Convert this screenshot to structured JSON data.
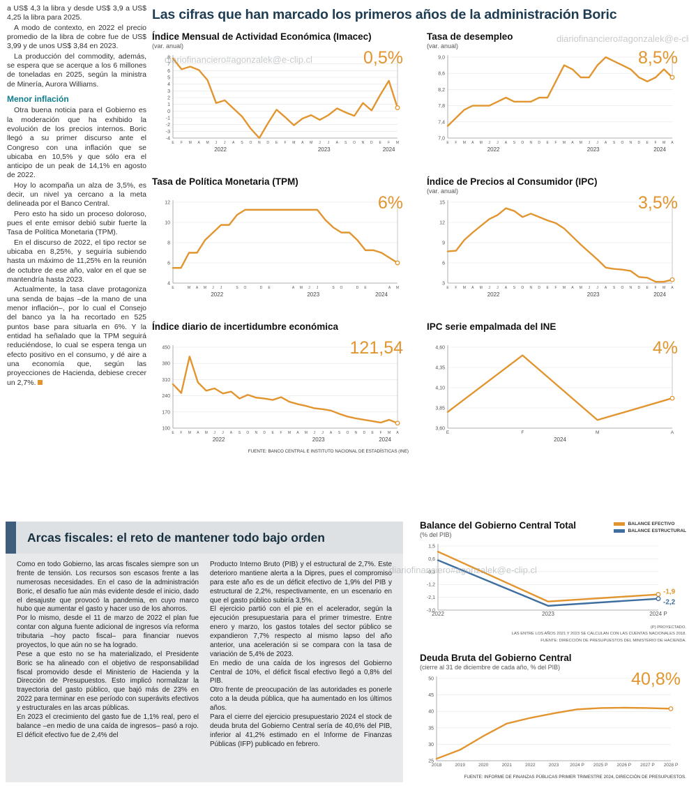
{
  "watermark": "diariofinanciero#agonzalek@e-clip.cl",
  "colors": {
    "accent_orange": "#E2952F",
    "line_blue": "#3E6E9E",
    "headline_navy": "#1E3C52",
    "teal": "#0E7D8C",
    "box_bar_blue": "#3F5E7E"
  },
  "left_column": {
    "paragraphs": [
      "a US$ 4,3 la libra y desde US$ 3,9 a US$ 4,25 la libra para 2025.",
      "A modo de contexto, en 2022 el precio promedio de la libra de cobre fue de US$ 3,99 y de unos US$ 3,84 en 2023.",
      "La producción del commodity, además, se espera que se acerque a los 6 millones de toneladas en 2025, según la ministra de Minería, Aurora Williams."
    ],
    "subheading": "Menor inflación",
    "paragraphs2": [
      "Otra buena noticia para el Gobierno es la moderación que ha exhibido la evolución de los precios internos. Boric llegó a su primer discurso ante el Congreso con una inflación que se ubicaba en 10,5% y que sólo era el anticipo de un peak de 14,1% en agosto de 2022.",
      "Hoy lo acompaña un alza de 3,5%, es decir, un nivel ya cercano a la meta delineada por el Banco Central.",
      "Pero esto ha sido un proceso doloroso, pues el ente emisor debió subir fuerte la Tasa de Política Monetaria (TPM).",
      "En el discurso de 2022, el tipo rector se ubicaba en 8,25%, y seguiría subiendo hasta un máximo de 11,25% en la reunión de octubre de ese año, valor en el que se mantendría hasta 2023.",
      "Actualmente, la tasa clave protagoniza una senda de bajas –de la mano de una menor inflación–, por lo cual el Consejo del banco ya la ha recortado en 525 puntos base para situarla en 6%. Y la entidad ha señalado que la TPM seguirá reduciéndose, lo cual se espera tenga un efecto positivo en el consumo, y dé aire a una economía que, según las proyecciones de Hacienda, debiese crecer un 2,7%."
    ]
  },
  "headline": "Las cifras que han marcado los primeros años de la administración Boric",
  "charts_source": "FUENTE: BANCO CENTRAL E INSTITUTO NACIONAL DE ESTADÍSTICAS (INE)",
  "arcas": {
    "title": "Arcas fiscales: el reto de mantener todo bajo orden",
    "col1": [
      "Como en todo Gobierno, las arcas fiscales siempre son un frente de tensión. Los recursos son escasos frente a las numerosas necesidades. En el caso de la administración Boric, el desafío fue aún más evidente desde el inicio, dado el desajuste que provocó la pandemia, en cuyo marco hubo que aumentar el gasto y hacer uso de los ahorros.",
      "Por lo mismo, desde el 11 de marzo de 2022 el plan fue contar con alguna fuente adicional de ingresos vía reforma tributaria –hoy pacto fiscal– para financiar nuevos proyectos, lo que aún no se ha logrado.",
      "Pese a que esto no se ha materializado, el Presidente Boric se ha alineado con el objetivo de responsabilidad fiscal promovido desde el Ministerio de Hacienda y la Dirección de Presupuestos. Esto implicó normalizar la trayectoria del gasto público, que bajó más de 23% en 2022 para terminar en ese período con superávits efectivos y estructurales en las arcas públicas.",
      "En 2023 el crecimiento del gasto fue de 1,1% real, pero el balance –en medio de una caída de ingresos– pasó a rojo. El déficit efectivo fue de 2,4% del"
    ],
    "col2": [
      "Producto Interno Bruto (PIB) y el estructural de 2,7%. Este deterioro mantiene alerta a la Dipres, pues el compromiso para este año es de un déficit efectivo de 1,9% del PIB y estructural de 2,2%, respectivamente, en un escenario en que el gasto público subiría 3,5%.",
      "El ejercicio partió con el pie en el acelerador, según la ejecución presupuestaria para el primer trimestre. Entre enero y marzo, los gastos totales del sector público se expandieron 7,7% respecto al mismo lapso del año anterior, una aceleración si se compara con la tasa de variación de 5,4% de 2023.",
      "En medio de una caída de los ingresos del Gobierno Central de 10%, el déficit fiscal efectivo llegó a 0,8% del PIB.",
      "Otro frente de preocupación de las autoridades es ponerle coto a la deuda pública, que ha aumentado en los últimos años.",
      "Para el cierre del ejercicio presupuestario 2024 el stock de deuda bruta del Gobierno Central sería de 40,6% del PIB, inferior al 41,2% estimado en el Informe de Finanzas Públicas (IFP) publicado en febrero."
    ]
  },
  "chart_data": [
    {
      "type": "line",
      "title": "Índice Mensual de Actividad Económica (Imacec)",
      "subtitle": "(var. anual)",
      "big_value": "0,5%",
      "end_guide": true,
      "ylim": [
        -4,
        8
      ],
      "y_ticks": [
        {
          "v": 8,
          "l": "8"
        },
        {
          "v": 7,
          "l": "7"
        },
        {
          "v": 6,
          "l": "6"
        },
        {
          "v": 5,
          "l": "5"
        },
        {
          "v": 4,
          "l": "4"
        },
        {
          "v": 3,
          "l": "3"
        },
        {
          "v": 2,
          "l": "2"
        },
        {
          "v": 1,
          "l": "1"
        },
        {
          "v": 0,
          "l": "0"
        },
        {
          "v": -1,
          "l": "-1"
        },
        {
          "v": -2,
          "l": "-2"
        },
        {
          "v": -3,
          "l": "-3"
        },
        {
          "v": -4,
          "l": "-4"
        }
      ],
      "x_labels": [
        "E",
        "F",
        "M",
        "A",
        "M",
        "J",
        "J",
        "A",
        "S",
        "O",
        "N",
        "D",
        "E",
        "F",
        "M",
        "A",
        "M",
        "J",
        "J",
        "A",
        "S",
        "O",
        "N",
        "D",
        "E",
        "F",
        "M"
      ],
      "year_ticks": [
        {
          "label": "2022",
          "i": 5.5
        },
        {
          "label": "2023",
          "i": 17.5
        },
        {
          "label": "2024",
          "i": 25
        }
      ],
      "series": [
        {
          "name": "Imacec",
          "color": "#E2952F",
          "values": [
            7.8,
            6.2,
            6.6,
            6.1,
            4.6,
            1.2,
            1.6,
            0.4,
            -0.8,
            -2.6,
            -4.0,
            -1.8,
            0.2,
            -0.9,
            -2.1,
            -1.1,
            -0.6,
            -1.3,
            -0.6,
            0.4,
            -0.2,
            -0.7,
            1.2,
            0.1,
            2.4,
            4.5,
            0.5
          ]
        }
      ]
    },
    {
      "type": "line",
      "title": "Tasa de desempleo",
      "subtitle": "(var. anual)",
      "big_value": "8,5%",
      "end_guide": true,
      "ylim": [
        7.0,
        9.0
      ],
      "y_ticks": [
        {
          "v": 9.0,
          "l": "9,0"
        },
        {
          "v": 8.6,
          "l": "8,6"
        },
        {
          "v": 8.2,
          "l": "8,2"
        },
        {
          "v": 7.8,
          "l": "7,8"
        },
        {
          "v": 7.4,
          "l": "7,4"
        },
        {
          "v": 7.0,
          "l": "7,0"
        }
      ],
      "x_labels": [
        "E",
        "F",
        "M",
        "A",
        "M",
        "J",
        "J",
        "A",
        "S",
        "O",
        "N",
        "D",
        "E",
        "F",
        "M",
        "A",
        "M",
        "J",
        "J",
        "A",
        "S",
        "O",
        "N",
        "D",
        "E",
        "F",
        "M",
        "A"
      ],
      "year_ticks": [
        {
          "label": "2022",
          "i": 5.5
        },
        {
          "label": "2023",
          "i": 17.5
        },
        {
          "label": "2024",
          "i": 25.5
        }
      ],
      "series": [
        {
          "name": "Desempleo",
          "color": "#E2952F",
          "values": [
            7.3,
            7.5,
            7.7,
            7.8,
            7.8,
            7.8,
            7.9,
            8.0,
            7.9,
            7.9,
            7.9,
            8.0,
            8.0,
            8.4,
            8.8,
            8.7,
            8.5,
            8.5,
            8.8,
            9.0,
            8.9,
            8.8,
            8.7,
            8.5,
            8.4,
            8.5,
            8.7,
            8.5
          ]
        }
      ]
    },
    {
      "type": "line",
      "title": "Tasa de Política Monetaria (TPM)",
      "subtitle": "",
      "big_value": "6%",
      "end_guide": true,
      "ylim": [
        4,
        12
      ],
      "y_ticks": [
        {
          "v": 12,
          "l": "12"
        },
        {
          "v": 10,
          "l": "10"
        },
        {
          "v": 8,
          "l": "8"
        },
        {
          "v": 6,
          "l": "6"
        },
        {
          "v": 4,
          "l": "4"
        }
      ],
      "x_labels": [
        "E",
        "",
        "M",
        "A",
        "M",
        "J",
        "J",
        "",
        "S",
        "O",
        "",
        "D",
        "E",
        "",
        "",
        "A",
        "M",
        "J",
        "J",
        "",
        "S",
        "O",
        "",
        "D",
        "E",
        "",
        "",
        "A",
        "M"
      ],
      "year_ticks": [
        {
          "label": "2022",
          "i": 5.5
        },
        {
          "label": "2023",
          "i": 17.5
        },
        {
          "label": "2024",
          "i": 26
        }
      ],
      "series": [
        {
          "name": "TPM",
          "color": "#E2952F",
          "values": [
            5.5,
            5.5,
            7.0,
            7.0,
            8.25,
            9.0,
            9.75,
            9.75,
            10.75,
            11.25,
            11.25,
            11.25,
            11.25,
            11.25,
            11.25,
            11.25,
            11.25,
            11.25,
            11.25,
            10.25,
            9.5,
            9.0,
            9.0,
            8.25,
            7.25,
            7.25,
            7.0,
            6.5,
            6.0
          ]
        }
      ]
    },
    {
      "type": "line",
      "title": "Índice de Precios al Consumidor (IPC)",
      "subtitle": "(var. anual)",
      "big_value": "3,5%",
      "end_guide": true,
      "ylim": [
        3,
        15
      ],
      "y_ticks": [
        {
          "v": 15,
          "l": "15"
        },
        {
          "v": 12,
          "l": "12"
        },
        {
          "v": 9,
          "l": "9"
        },
        {
          "v": 6,
          "l": "6"
        },
        {
          "v": 3,
          "l": "3"
        }
      ],
      "x_labels": [
        "E",
        "F",
        "M",
        "A",
        "M",
        "J",
        "J",
        "A",
        "S",
        "O",
        "N",
        "D",
        "E",
        "F",
        "M",
        "A",
        "M",
        "J",
        "J",
        "A",
        "S",
        "O",
        "N",
        "D",
        "E",
        "F",
        "M",
        "A"
      ],
      "year_ticks": [
        {
          "label": "2022",
          "i": 5.5
        },
        {
          "label": "2023",
          "i": 17.5
        },
        {
          "label": "2024",
          "i": 25.5
        }
      ],
      "series": [
        {
          "name": "IPC",
          "color": "#E2952F",
          "values": [
            7.7,
            7.8,
            9.4,
            10.5,
            11.5,
            12.5,
            13.1,
            14.1,
            13.7,
            12.8,
            13.3,
            12.8,
            12.3,
            11.9,
            11.1,
            9.9,
            8.7,
            7.6,
            6.5,
            5.3,
            5.1,
            5.0,
            4.8,
            3.9,
            3.8,
            3.2,
            3.2,
            3.5
          ]
        }
      ]
    },
    {
      "type": "line",
      "title": "Índice diario de incertidumbre económica",
      "subtitle": "",
      "big_value": "121,54",
      "end_guide": true,
      "ylim": [
        100,
        450
      ],
      "y_ticks": [
        {
          "v": 450,
          "l": "450"
        },
        {
          "v": 380,
          "l": "380"
        },
        {
          "v": 310,
          "l": "310"
        },
        {
          "v": 240,
          "l": "240"
        },
        {
          "v": 170,
          "l": "170"
        },
        {
          "v": 100,
          "l": "100"
        }
      ],
      "x_labels": [
        "E",
        "F",
        "M",
        "A",
        "M",
        "J",
        "J",
        "A",
        "S",
        "O",
        "N",
        "D",
        "E",
        "F",
        "M",
        "A",
        "M",
        "J",
        "J",
        "A",
        "S",
        "O",
        "N",
        "D",
        "E",
        "F",
        "M",
        "A"
      ],
      "year_ticks": [
        {
          "label": "2022",
          "i": 5.5
        },
        {
          "label": "2023",
          "i": 17.5
        },
        {
          "label": "2024",
          "i": 25.5
        }
      ],
      "series": [
        {
          "name": "Incertidumbre",
          "color": "#E2952F",
          "values": [
            290,
            252,
            410,
            298,
            262,
            272,
            250,
            258,
            228,
            244,
            232,
            228,
            222,
            234,
            214,
            204,
            196,
            186,
            182,
            176,
            162,
            150,
            142,
            136,
            130,
            124,
            136,
            121.54
          ]
        }
      ]
    },
    {
      "type": "line",
      "title": "IPC serie empalmada del INE",
      "subtitle": "",
      "big_value": "4%",
      "end_guide": true,
      "ylim": [
        3.6,
        4.6
      ],
      "y_ticks": [
        {
          "v": 4.6,
          "l": "4,60"
        },
        {
          "v": 4.35,
          "l": "4,35"
        },
        {
          "v": 4.1,
          "l": "4,10"
        },
        {
          "v": 3.85,
          "l": "3,85"
        },
        {
          "v": 3.6,
          "l": "3,60"
        }
      ],
      "x_labels": [
        "E",
        "F",
        "M",
        "A"
      ],
      "year_ticks": [
        {
          "label": "2024",
          "i": 1.5
        }
      ],
      "series": [
        {
          "name": "IPC INE",
          "color": "#E2952F",
          "values": [
            3.8,
            4.5,
            3.7,
            3.97
          ]
        }
      ]
    },
    {
      "type": "line",
      "title": "Balance del Gobierno Central Total",
      "subtitle": "(% del PIB)",
      "ylim": [
        -3.0,
        1.5
      ],
      "y_ticks": [
        {
          "v": 1.5,
          "l": "1,5"
        },
        {
          "v": 0.6,
          "l": "0,6"
        },
        {
          "v": -0.3,
          "l": "-0,3"
        },
        {
          "v": -1.2,
          "l": "-1,2"
        },
        {
          "v": -2.1,
          "l": "-2,1"
        },
        {
          "v": -3.0,
          "l": "-3,0"
        }
      ],
      "x_labels": [
        "2022",
        "2023",
        "2024 P"
      ],
      "series": [
        {
          "name": "BALANCE EFECTIVO",
          "color": "#E2952F",
          "values": [
            1.1,
            -2.4,
            -1.9
          ],
          "end_label": "-1,9",
          "dy": -1
        },
        {
          "name": "BALANCE ESTRUCTURAL",
          "color": "#3E6E9E",
          "values": [
            0.5,
            -2.7,
            -2.2
          ],
          "end_label": "-2,2",
          "dy": 8
        }
      ],
      "notes": [
        "(P) PROYECTADO.",
        "LAS ENTRE LOS AÑOS 2021 Y 2023 SE CALCULAN CON LAS CUENTAS NACIONALES 2018.",
        "FUENTE: DIRECCIÓN DE PRESUPUESTOS DEL MINISTERIO DE HACIENDA."
      ]
    },
    {
      "type": "line",
      "title": "Deuda Bruta del Gobierno Central",
      "subtitle": "(cierre al 31 de diciembre de cada año, % del PIB)",
      "big_value": "40,8%",
      "ylim": [
        25,
        50
      ],
      "y_ticks": [
        {
          "v": 50,
          "l": "50"
        },
        {
          "v": 45,
          "l": "45"
        },
        {
          "v": 40,
          "l": "40"
        },
        {
          "v": 35,
          "l": "35"
        },
        {
          "v": 30,
          "l": "30"
        },
        {
          "v": 25,
          "l": "25"
        }
      ],
      "x_labels": [
        "2018",
        "2019",
        "2020",
        "2021",
        "2022",
        "2023",
        "2024 P",
        "2025 P",
        "2026 P",
        "2027 P",
        "2028 P"
      ],
      "series": [
        {
          "name": "Deuda bruta",
          "color": "#E2952F",
          "values": [
            25.6,
            28.3,
            32.5,
            36.3,
            38.0,
            39.4,
            40.6,
            41.0,
            41.1,
            41.0,
            40.8
          ]
        }
      ],
      "source": "FUENTE: INFORME DE FINANZAS PÚBLICAS PRIMER TRIMESTRE 2024, DIRECCIÓN DE PRESUPUESTOS."
    }
  ]
}
